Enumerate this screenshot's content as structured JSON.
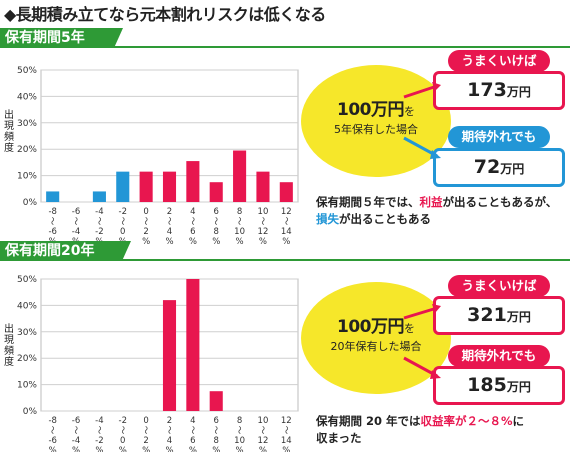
{
  "title": "◆長期積み立てなら元本割れリスクは低くなる",
  "colors": {
    "green": "#2e9a36",
    "red": "#e8164f",
    "blue": "#2296d6",
    "yellow": "#f6e72a"
  },
  "chart_data": [
    {
      "type": "bar",
      "title": "保有期間5年",
      "ylabel": "出現頻度",
      "ylim": [
        0,
        50
      ],
      "yticks": [
        "0%",
        "10%",
        "20%",
        "30%",
        "40%",
        "50%"
      ],
      "categories": [
        "-8～-6%",
        "-6～-4%",
        "-4～-2%",
        "-2～0%",
        "0～2%",
        "2～4%",
        "4～6%",
        "6～8%",
        "8～10%",
        "10～12%",
        "12～14%"
      ],
      "tick_labels": [
        [
          "-8",
          "～",
          "-6",
          "%"
        ],
        [
          "-6",
          "～",
          "-4",
          "%"
        ],
        [
          "-4",
          "～",
          "-2",
          "%"
        ],
        [
          "-2",
          "～",
          "0",
          "%"
        ],
        [
          "0",
          "～",
          "2",
          "%"
        ],
        [
          "2",
          "～",
          "4",
          "%"
        ],
        [
          "4",
          "～",
          "6",
          "%"
        ],
        [
          "6",
          "～",
          "8",
          "%"
        ],
        [
          "8",
          "～",
          "10",
          "%"
        ],
        [
          "10",
          "～",
          "12",
          "%"
        ],
        [
          "12",
          "～",
          "14",
          "%"
        ]
      ],
      "values": [
        4,
        0,
        4,
        11.5,
        11.5,
        11.5,
        15.5,
        7.5,
        19.5,
        11.5,
        7.5
      ],
      "bar_colors": [
        "#2296d6",
        "#2296d6",
        "#2296d6",
        "#2296d6",
        "#e8164f",
        "#e8164f",
        "#e8164f",
        "#e8164f",
        "#e8164f",
        "#e8164f",
        "#e8164f"
      ]
    },
    {
      "type": "bar",
      "title": "保有期間20年",
      "ylabel": "出現頻度",
      "ylim": [
        0,
        50
      ],
      "yticks": [
        "0%",
        "10%",
        "20%",
        "30%",
        "40%",
        "50%"
      ],
      "categories": [
        "-8～-6%",
        "-6～-4%",
        "-4～-2%",
        "-2～0%",
        "0～2%",
        "2～4%",
        "4～6%",
        "6～8%",
        "8～10%",
        "10～12%",
        "12～14%"
      ],
      "tick_labels": [
        [
          "-8",
          "～",
          "-6",
          "%"
        ],
        [
          "-6",
          "～",
          "-4",
          "%"
        ],
        [
          "-4",
          "～",
          "-2",
          "%"
        ],
        [
          "-2",
          "～",
          "0",
          "%"
        ],
        [
          "0",
          "～",
          "2",
          "%"
        ],
        [
          "2",
          "～",
          "4",
          "%"
        ],
        [
          "4",
          "～",
          "6",
          "%"
        ],
        [
          "6",
          "～",
          "8",
          "%"
        ],
        [
          "8",
          "～",
          "10",
          "%"
        ],
        [
          "10",
          "～",
          "12",
          "%"
        ],
        [
          "12",
          "～",
          "14",
          "%"
        ]
      ],
      "values": [
        0,
        0,
        0,
        0,
        0,
        42,
        50,
        7.5,
        0,
        0,
        0
      ],
      "bar_colors": [
        "#e8164f",
        "#e8164f",
        "#e8164f",
        "#e8164f",
        "#e8164f",
        "#e8164f",
        "#e8164f",
        "#e8164f",
        "#e8164f",
        "#e8164f",
        "#e8164f"
      ]
    }
  ],
  "section1": {
    "header": "保有期間5年",
    "ylabel_chars": [
      "出",
      "現",
      "頻",
      "度"
    ],
    "circle_big": "100万円",
    "circle_suffix": "を",
    "circle_small": "5年保有した場合",
    "good_tag": "うまくいけば",
    "good_value": "173",
    "good_unit": "万円",
    "bad_tag": "期待外れでも",
    "bad_value": "72",
    "bad_unit": "万円",
    "note_a": "保有期間５年では、",
    "note_b": "利益",
    "note_c": "が出ることもあるが、",
    "note_d": "損失",
    "note_e": "が出ることもある"
  },
  "section2": {
    "header": "保有期間20年",
    "ylabel_chars": [
      "出",
      "現",
      "頻",
      "度"
    ],
    "circle_big": "100万円",
    "circle_suffix": "を",
    "circle_small": "20年保有した場合",
    "good_tag": "うまくいけば",
    "good_value": "321",
    "good_unit": "万円",
    "bad_tag": "期待外れでも",
    "bad_value": "185",
    "bad_unit": "万円",
    "note_a": "保有期間 20 年では",
    "note_b": "収益率が２～８%",
    "note_c": "に",
    "note_d": "収まった"
  }
}
